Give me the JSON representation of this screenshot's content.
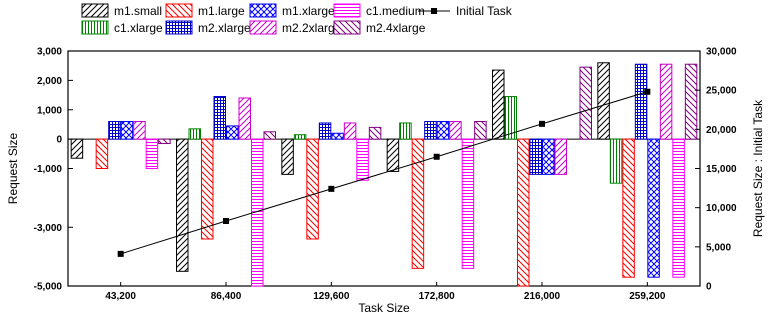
{
  "chart_data": {
    "type": "bar",
    "categories": [
      "43,200",
      "86,400",
      "129,600",
      "172,800",
      "216,000",
      "259,200"
    ],
    "xlabel": "Task Size",
    "ylabel": "Request Size",
    "y2label": "Request Size : Initial Task",
    "ylim": [
      -5000,
      3000
    ],
    "y2lim": [
      0,
      30000
    ],
    "yticks": [
      -5000,
      -3000,
      -1000,
      0,
      1000,
      2000,
      3000
    ],
    "ytick_labels": [
      "-5,000",
      "-3,000",
      "-1,000",
      "0",
      "1,000",
      "2,000",
      "3,000"
    ],
    "y2ticks": [
      0,
      5000,
      10000,
      15000,
      20000,
      25000,
      30000
    ],
    "y2tick_labels": [
      "0",
      "5,000",
      "10,000",
      "15,000",
      "20,000",
      "25,000",
      "30,000"
    ],
    "grid": false,
    "legend_position": "top",
    "series": [
      {
        "name": "m1.small",
        "color": "#000000",
        "pattern": "diag-right",
        "values": [
          -650,
          -4500,
          -1200,
          -1100,
          2350,
          2600
        ]
      },
      {
        "name": "c1.xlarge",
        "color": "#008000",
        "pattern": "vertical",
        "values": [
          0,
          350,
          150,
          550,
          1450,
          -1500
        ]
      },
      {
        "name": "m1.large",
        "color": "#ff0000",
        "pattern": "diag-left",
        "values": [
          -1000,
          -3400,
          -3400,
          -4400,
          -5000,
          -4700
        ]
      },
      {
        "name": "m2.xlarge",
        "color": "#0000cc",
        "pattern": "grid",
        "values": [
          600,
          1450,
          550,
          600,
          -1200,
          2550
        ]
      },
      {
        "name": "m1.xlarge",
        "color": "#0000ff",
        "pattern": "crosshatch",
        "values": [
          600,
          450,
          200,
          600,
          -1200,
          -4700
        ]
      },
      {
        "name": "m2.2xlarge",
        "color": "#cc00cc",
        "pattern": "diag-right",
        "values": [
          600,
          1400,
          550,
          600,
          -1200,
          2550
        ]
      },
      {
        "name": "c1.medium",
        "color": "#ff00ff",
        "pattern": "horizontal",
        "values": [
          -1000,
          -5000,
          -1400,
          -4400,
          0,
          -4700
        ]
      },
      {
        "name": "m2.4xlarge",
        "color": "#800080",
        "pattern": "diag-left",
        "values": [
          -150,
          250,
          400,
          600,
          2450,
          2550
        ]
      }
    ],
    "line_series": {
      "name": "Initial Task",
      "axis": "right",
      "color": "#000000",
      "values": [
        4100,
        8300,
        12400,
        16500,
        20700,
        24800
      ]
    }
  }
}
